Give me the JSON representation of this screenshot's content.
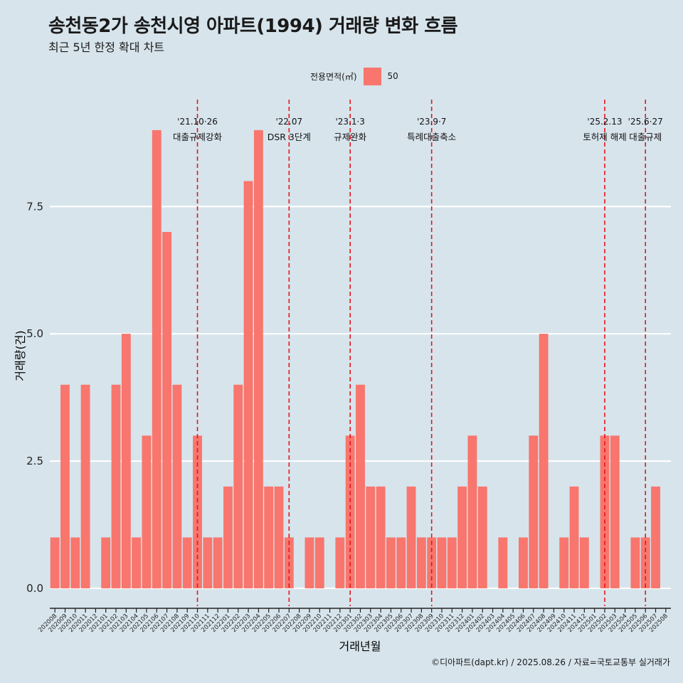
{
  "title": "송천동2가 송천시영 아파트(1994) 거래량 변화 흐름",
  "subtitle": "최근 5년 한정 확대 차트",
  "legend": {
    "title": "전용면적(㎡)",
    "item": "50",
    "color": "#f8766d"
  },
  "caption": "©디아파트(dapt.kr) / 2025.08.26 / 자료=국토교통부 실거래가",
  "chart_data": {
    "type": "bar",
    "title": "송천동2가 송천시영 아파트(1994) 거래량 변화 흐름",
    "subtitle": "최근 5년 한정 확대 차트",
    "xlabel": "거래년월",
    "ylabel": "거래량(건)",
    "ylim": [
      -0.35,
      9.6
    ],
    "yticks": [
      0,
      2.5,
      5,
      7.5
    ],
    "ytick_labels": [
      "0.0",
      "2.5",
      "5.0",
      "7.5"
    ],
    "bar_color": "#f8766d",
    "legend_position": "top",
    "categories": [
      "202008",
      "202009",
      "202010",
      "202011",
      "202012",
      "202101",
      "202102",
      "202103",
      "202104",
      "202105",
      "202106",
      "202107",
      "202108",
      "202109",
      "202110",
      "202111",
      "202112",
      "202201",
      "202202",
      "202203",
      "202204",
      "202205",
      "202206",
      "202207",
      "202208",
      "202209",
      "202210",
      "202211",
      "202212",
      "202301",
      "202302",
      "202303",
      "202304",
      "202305",
      "202306",
      "202307",
      "202308",
      "202309",
      "202310",
      "202311",
      "202312",
      "202401",
      "202402",
      "202403",
      "202404",
      "202405",
      "202406",
      "202407",
      "202408",
      "202409",
      "202410",
      "202411",
      "202412",
      "202501",
      "202502",
      "202503",
      "202504",
      "202505",
      "202506",
      "202507",
      "202508"
    ],
    "series": [
      {
        "name": "50",
        "values": [
          1,
          4,
          1,
          4,
          0,
          1,
          4,
          5,
          1,
          3,
          9,
          7,
          4,
          1,
          3,
          1,
          1,
          2,
          4,
          8,
          9,
          2,
          2,
          1,
          0,
          1,
          1,
          0,
          1,
          3,
          4,
          2,
          2,
          1,
          1,
          2,
          1,
          1,
          1,
          1,
          2,
          3,
          2,
          0,
          1,
          0,
          1,
          3,
          5,
          0,
          1,
          2,
          1,
          0,
          3,
          3,
          0,
          1,
          1,
          2,
          0
        ]
      }
    ],
    "events": [
      {
        "date": "202110",
        "line1": "'21.10·26",
        "line2": "대출규제강화"
      },
      {
        "date": "202207",
        "line1": "'22.07",
        "line2": "DSR 3단계"
      },
      {
        "date": "202301",
        "line1": "'23.1·3",
        "line2": "규제완화"
      },
      {
        "date": "202309",
        "line1": "'23.9·7",
        "line2": "특례대출축소"
      },
      {
        "date": "202502",
        "line1": "'25.2.13",
        "line2": "토허제 해제"
      },
      {
        "date": "202506",
        "line1": "'25.6·27",
        "line2": "대출규제"
      }
    ],
    "grid": true
  }
}
